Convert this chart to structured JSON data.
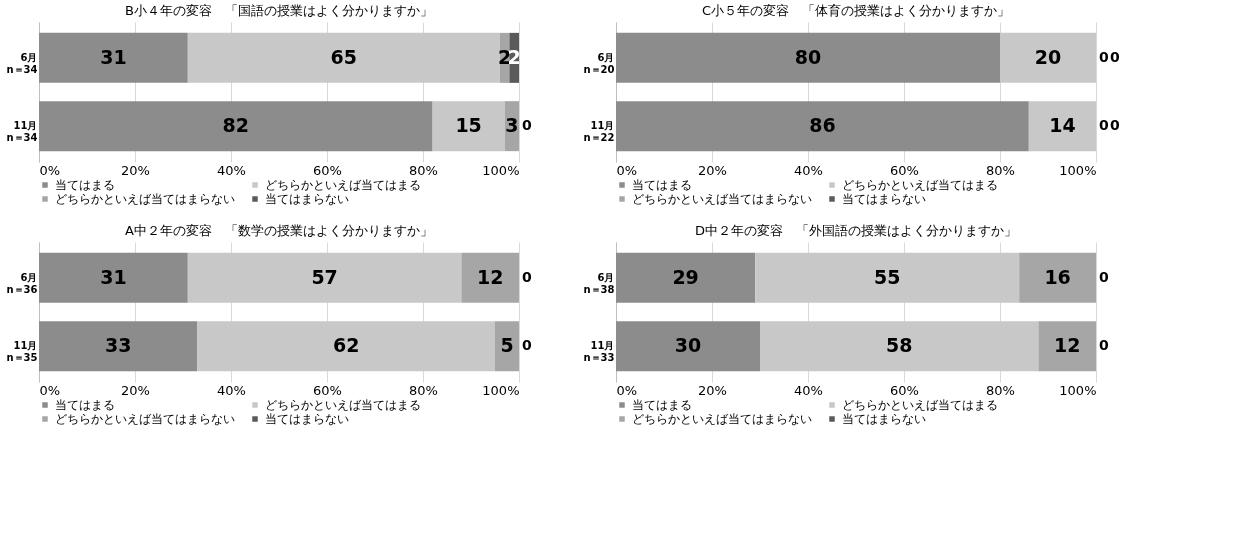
{
  "chart_data": [
    {
      "type": "bar",
      "orientation": "horizontal",
      "stacked": true,
      "title": "B小４年の変容　「国語の授業はよく分かりますか」",
      "categories": [
        "6月\nn＝34",
        "11月\nn＝34"
      ],
      "series": [
        {
          "name": "当てはまる",
          "color": "#8c8c8c",
          "values": [
            31,
            82
          ]
        },
        {
          "name": "どちらかといえば当てはまる",
          "color": "#c8c8c8",
          "values": [
            65,
            15
          ]
        },
        {
          "name": "どちらかといえば当てはまらない",
          "color": "#a6a6a6",
          "values": [
            2,
            3
          ]
        },
        {
          "name": "当てはまらない",
          "color": "#5a5a5a",
          "values": [
            2,
            0
          ]
        }
      ],
      "xlim": [
        0,
        100
      ],
      "xticks": [
        {
          "value": 0,
          "label": "0%"
        },
        {
          "value": 20,
          "label": "20%"
        },
        {
          "value": 40,
          "label": "40%"
        },
        {
          "value": 60,
          "label": "60%"
        },
        {
          "value": 80,
          "label": "80%"
        },
        {
          "value": 100,
          "label": "100%"
        }
      ],
      "grid": "x",
      "legend": "bottom",
      "data_labels": true
    },
    {
      "type": "bar",
      "orientation": "horizontal",
      "stacked": true,
      "title": "C小５年の変容　「体育の授業はよく分かりますか」",
      "categories": [
        "6月\nn＝20",
        "11月\nn＝22"
      ],
      "series": [
        {
          "name": "当てはまる",
          "color": "#8c8c8c",
          "values": [
            80,
            86
          ]
        },
        {
          "name": "どちらかといえば当てはまる",
          "color": "#c8c8c8",
          "values": [
            20,
            14
          ]
        },
        {
          "name": "どちらかといえば当てはまらない",
          "color": "#a6a6a6",
          "values": [
            0,
            0
          ]
        },
        {
          "name": "当てはまらない",
          "color": "#5a5a5a",
          "values": [
            0,
            0
          ]
        }
      ],
      "xlim": [
        0,
        100
      ],
      "xticks": [
        {
          "value": 0,
          "label": "0%"
        },
        {
          "value": 20,
          "label": "20%"
        },
        {
          "value": 40,
          "label": "40%"
        },
        {
          "value": 60,
          "label": "60%"
        },
        {
          "value": 80,
          "label": "80%"
        },
        {
          "value": 100,
          "label": "100%"
        }
      ],
      "grid": "x",
      "legend": "bottom",
      "data_labels": true
    },
    {
      "type": "bar",
      "orientation": "horizontal",
      "stacked": true,
      "title": "A中２年の変容　「数学の授業はよく分かりますか」",
      "categories": [
        "6月\nn＝36",
        "11月\nn＝35"
      ],
      "series": [
        {
          "name": "当てはまる",
          "color": "#8c8c8c",
          "values": [
            31,
            33
          ]
        },
        {
          "name": "どちらかといえば当てはまる",
          "color": "#c8c8c8",
          "values": [
            57,
            62
          ]
        },
        {
          "name": "どちらかといえば当てはまらない",
          "color": "#a6a6a6",
          "values": [
            12,
            5
          ]
        },
        {
          "name": "当てはまらない",
          "color": "#5a5a5a",
          "values": [
            0,
            0
          ]
        }
      ],
      "xlim": [
        0,
        100
      ],
      "xticks": [
        {
          "value": 0,
          "label": "0%"
        },
        {
          "value": 20,
          "label": "20%"
        },
        {
          "value": 40,
          "label": "40%"
        },
        {
          "value": 60,
          "label": "60%"
        },
        {
          "value": 80,
          "label": "80%"
        },
        {
          "value": 100,
          "label": "100%"
        }
      ],
      "grid": "x",
      "legend": "bottom",
      "data_labels": true
    },
    {
      "type": "bar",
      "orientation": "horizontal",
      "stacked": true,
      "title": "D中２年の変容　「外国語の授業はよく分かりますか」",
      "categories": [
        "6月\nn＝38",
        "11月\nn＝33"
      ],
      "series": [
        {
          "name": "当てはまる",
          "color": "#8c8c8c",
          "values": [
            29,
            30
          ]
        },
        {
          "name": "どちらかといえば当てはまる",
          "color": "#c8c8c8",
          "values": [
            55,
            58
          ]
        },
        {
          "name": "どちらかといえば当てはまらない",
          "color": "#a6a6a6",
          "values": [
            16,
            12
          ]
        },
        {
          "name": "当てはまらない",
          "color": "#5a5a5a",
          "values": [
            0,
            0
          ]
        }
      ],
      "xlim": [
        0,
        100
      ],
      "xticks": [
        {
          "value": 0,
          "label": "0%"
        },
        {
          "value": 20,
          "label": "20%"
        },
        {
          "value": 40,
          "label": "40%"
        },
        {
          "value": 60,
          "label": "60%"
        },
        {
          "value": 80,
          "label": "80%"
        },
        {
          "value": 100,
          "label": "100%"
        }
      ],
      "grid": "x",
      "legend": "bottom",
      "data_labels": true
    }
  ]
}
